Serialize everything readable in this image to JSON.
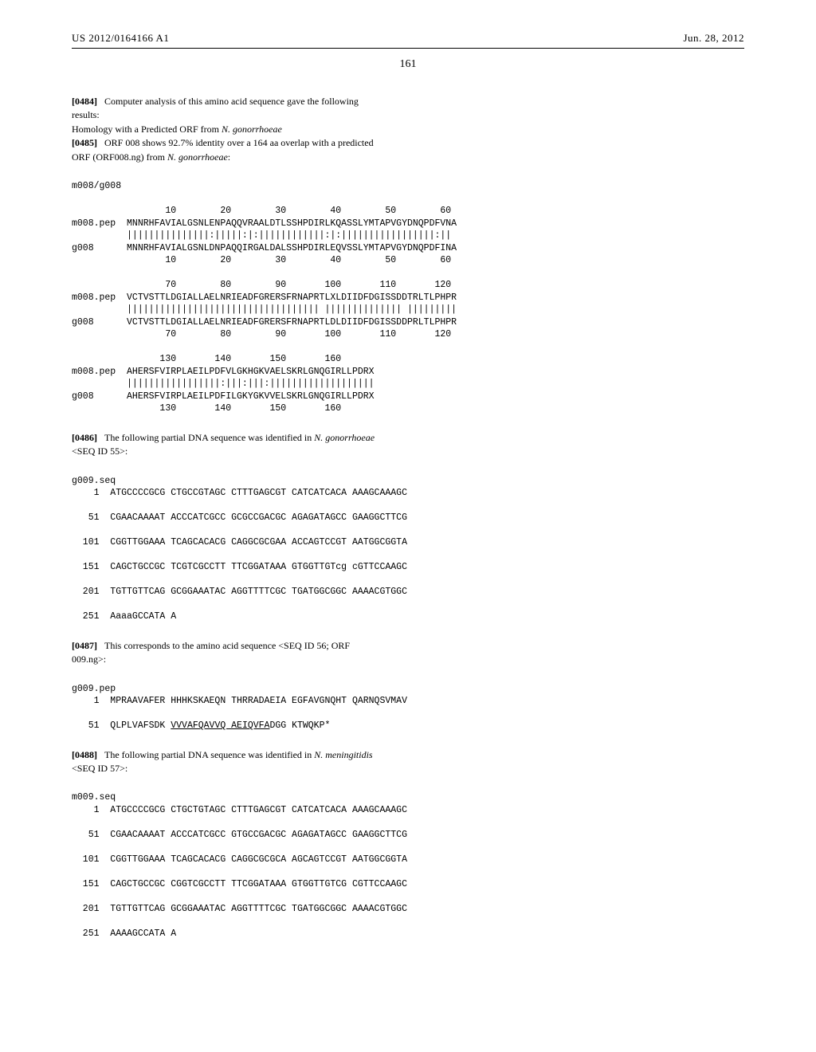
{
  "header": {
    "docNumber": "US 2012/0164166 A1",
    "date": "Jun. 28, 2012"
  },
  "pageNumber": "161",
  "para0484": {
    "num": "[0484]",
    "text": "Computer analysis of this amino acid sequence gave the following results:"
  },
  "homologyTitle": "Homology with a Predicted ORF from ",
  "homologyItalic": "N. gonorrhoeae",
  "para0485": {
    "num": "[0485]",
    "text1": "ORF 008 shows 92.7% identity over a 164 aa overlap with a predicted ORF (ORF008.ng) from ",
    "italic": "N. gonorrhoeae",
    "text2": ":"
  },
  "alignment": {
    "title": "m008/g008",
    "block": "                 10        20        30        40        50        60\nm008.pep  MNNRHFAVIALGSNLENPAQQVRAALDTLSSHPDIRLKQASSLYMTAPVGYDNQPDFVNA\n          |||||||||||||||:|||||:|:||||||||||||:|:|||||||||||||||||:||\ng008      MNNRHFAVIALGSNLDNPAQQIRGALDALSSHPDIRLEQVSSLYMTAPVGYDNQPDFINA\n                 10        20        30        40        50        60\n\n                 70        80        90       100       110       120\nm008.pep  VCTVSTTLDGIALLAELNRIEADFGRERSFRNAPRTLXLDIIDFDGISSDDTRLTLPHPR\n          ||||||||||||||||||||||||||||||||||| |||||||||||||| |||||||||\ng008      VCTVSTTLDGIALLAELNRIEADFGRERSFRNAPRTLDLDIIDFDGISSDDPRLTLPHPR\n                 70        80        90       100       110       120\n\n                130       140       150       160\nm008.pep  AHERSFVIRPLAEILPDFVLGKHGKVAELSKRLGNQGIRLLPDRX\n          |||||||||||||||||:|||:|||:|||||||||||||||||||\ng008      AHERSFVIRPLAEILPDFILGKYGKVVELSKRLGNQGIRLLPDRX\n                130       140       150       160"
  },
  "para0486": {
    "num": "[0486]",
    "text1": "The following partial DNA sequence was identified in ",
    "italic": "N. gonorrhoeae",
    "text2": " <SEQ ID 55>:"
  },
  "g009seq": {
    "title": "g009.seq",
    "lines": [
      "    1  ATGCCCCGCG CTGCCGTAGC CTTTGAGCGT CATCATCACA AAAGCAAAGC",
      "",
      "   51  CGAACAAAAT ACCCATCGCC GCGCCGACGC AGAGATAGCC GAAGGCTTCG",
      "",
      "  101  CGGTTGGAAA TCAGCACACG CAGGCGCGAA ACCAGTCCGT AATGGCGGTA",
      "",
      "  151  CAGCTGCCGC TCGTCGCCTT TTCGGATAAA GTGGTTGTcg cGTTCCAAGC",
      "",
      "  201  TGTTGTTCAG GCGGAAATAC AGGTTTTCGC TGATGGCGGC AAAACGTGGC",
      "",
      "  251  AaaaGCCATA A"
    ]
  },
  "para0487": {
    "num": "[0487]",
    "text": "This corresponds to the amino acid sequence <SEQ ID 56; ORF 009.ng>:"
  },
  "g009pep": {
    "title": "g009.pep",
    "line1": "    1  MPRAAVAFER HHHKSKAEQN THRRADAEIA EGFAVGNQHT QARNQSVMAV",
    "line2pre": "   51  QLPLVAFSDK ",
    "line2under": "VVVAFQAVVQ AEIQVFA",
    "line2post": "DGG KTWQKP*"
  },
  "para0488": {
    "num": "[0488]",
    "text1": "The following partial DNA sequence was identified in ",
    "italic": "N. meningitidis",
    "text2": " <SEQ ID 57>:"
  },
  "m009seq": {
    "title": "m009.seq",
    "lines": [
      "    1  ATGCCCCGCG CTGCTGTAGC CTTTGAGCGT CATCATCACA AAAGCAAAGC",
      "",
      "   51  CGAACAAAAT ACCCATCGCC GTGCCGACGC AGAGATAGCC GAAGGCTTCG",
      "",
      "  101  CGGTTGGAAA TCAGCACACG CAGGCGCGCA AGCAGTCCGT AATGGCGGTA",
      "",
      "  151  CAGCTGCCGC CGGTCGCCTT TTCGGATAAA GTGGTTGTCG CGTTCCAAGC",
      "",
      "  201  TGTTGTTCAG GCGGAAATAC AGGTTTTCGC TGATGGCGGC AAAACGTGGC",
      "",
      "  251  AAAAGCCATA A"
    ]
  }
}
